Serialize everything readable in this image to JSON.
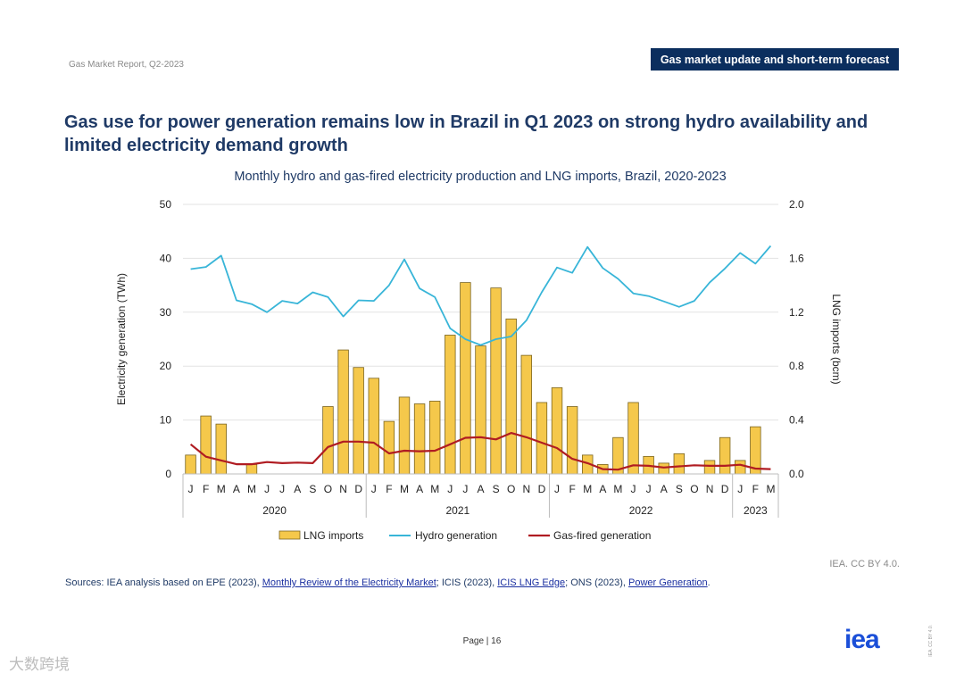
{
  "header": {
    "report_label": "Gas Market Report, Q2-2023",
    "section_badge": "Gas market update and short-term forecast"
  },
  "headline": {
    "line1": "Gas use for power generation remains low in Brazil in Q1 2023 on strong hydro availability and",
    "line2": "limited electricity demand growth"
  },
  "chart_title": "Monthly hydro and gas-fired electricity production and LNG imports, Brazil, 2020-2023",
  "chart_data": {
    "type": "bar+line",
    "title": "Monthly hydro and gas-fired electricity production and LNG imports, Brazil, 2020-2023",
    "ylabel": "Electricity generation (TWh)",
    "y2label": "LNG imports (bcm)",
    "ylim": [
      0,
      50
    ],
    "y2lim": [
      0,
      2.0
    ],
    "yticks": [
      "0",
      "10",
      "20",
      "30",
      "40",
      "50"
    ],
    "y2ticks": [
      "0.0",
      "0.4",
      "0.8",
      "1.2",
      "1.6",
      "2.0"
    ],
    "grid": true,
    "legend_position": "bottom",
    "categories": [
      "J",
      "F",
      "M",
      "A",
      "M",
      "J",
      "J",
      "A",
      "S",
      "O",
      "N",
      "D",
      "J",
      "F",
      "M",
      "A",
      "M",
      "J",
      "J",
      "A",
      "S",
      "O",
      "N",
      "D",
      "J",
      "F",
      "M",
      "A",
      "M",
      "J",
      "J",
      "A",
      "S",
      "O",
      "N",
      "D",
      "J",
      "F",
      "M"
    ],
    "year_groups": [
      {
        "label": "2020",
        "count": 12
      },
      {
        "label": "2021",
        "count": 12
      },
      {
        "label": "2022",
        "count": 12
      },
      {
        "label": "2023",
        "count": 3
      }
    ],
    "series": [
      {
        "name": "LNG imports",
        "type": "bar",
        "axis": "right",
        "color": "#f5c84b",
        "values": [
          0.14,
          0.43,
          0.37,
          0,
          0.07,
          0,
          0,
          0,
          0,
          0.5,
          0.92,
          0.79,
          0.71,
          0.39,
          0.57,
          0.52,
          0.54,
          1.03,
          1.42,
          0.95,
          1.38,
          1.15,
          0.88,
          0.53,
          0.64,
          0.5,
          0.14,
          0.07,
          0.27,
          0.53,
          0.13,
          0.08,
          0.15,
          0,
          0.1,
          0.27,
          0.1,
          0.35,
          0
        ]
      },
      {
        "name": "Hydro generation",
        "type": "line",
        "axis": "left",
        "color": "#38b5d8",
        "values": [
          38.0,
          38.4,
          40.5,
          32.2,
          31.5,
          30.0,
          32.1,
          31.6,
          33.7,
          32.8,
          29.2,
          32.2,
          32.1,
          35.0,
          39.8,
          34.4,
          32.8,
          27.0,
          25.0,
          23.9,
          25.0,
          25.5,
          28.5,
          33.7,
          38.3,
          37.3,
          42.1,
          38.2,
          36.2,
          33.5,
          33.0,
          32.0,
          31.0,
          32.1,
          35.5,
          38.1,
          41.0,
          39.0,
          42.3
        ]
      },
      {
        "name": "Gas-fired generation",
        "type": "line",
        "axis": "left",
        "color": "#b01c22",
        "values": [
          5.5,
          3.2,
          2.5,
          1.8,
          1.8,
          2.2,
          2.0,
          2.1,
          2.0,
          5.0,
          6.0,
          6.0,
          5.8,
          3.8,
          4.3,
          4.2,
          4.3,
          5.5,
          6.7,
          6.8,
          6.4,
          7.6,
          6.8,
          5.8,
          4.8,
          2.8,
          2.0,
          0.9,
          0.8,
          1.6,
          1.5,
          1.2,
          1.4,
          1.6,
          1.5,
          1.5,
          1.7,
          1.0,
          0.9
        ]
      }
    ]
  },
  "attribution": "IEA. CC BY 4.0.",
  "sources": {
    "prefix": "Sources: IEA analysis based on EPE (2023), ",
    "link1": "Monthly Review of the Electricity Market",
    "mid1": "; ICIS (2023), ",
    "link2": "ICIS LNG Edge",
    "mid2": "; ONS (2023), ",
    "link3": "Power Generation",
    "suffix": "."
  },
  "page_label": "Page | 16",
  "logo_text": "iea",
  "license_vertical": "IEA. CC BY 4.0.",
  "watermark": "大数跨境"
}
